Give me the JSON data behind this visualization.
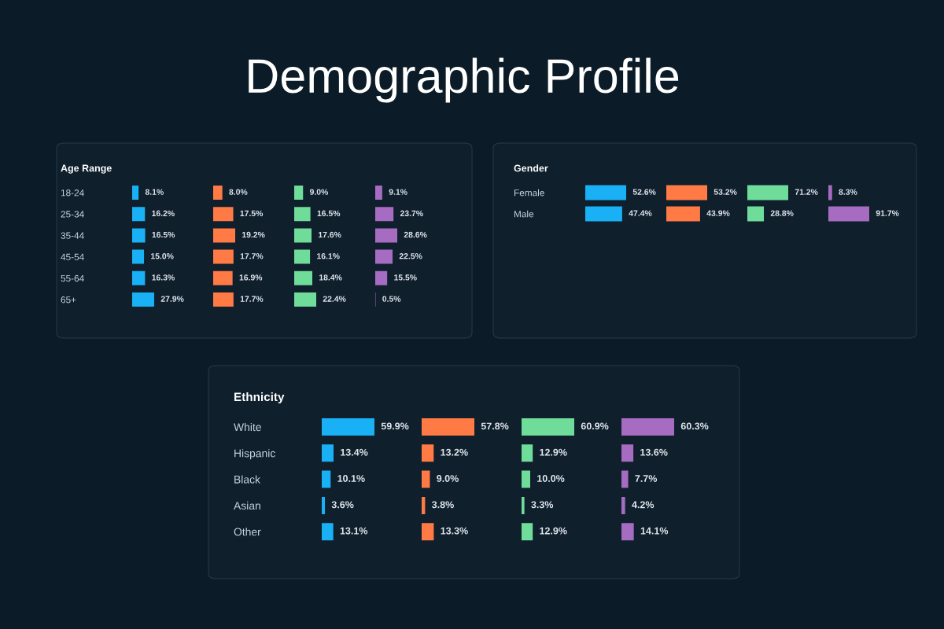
{
  "chart_data": [
    {
      "type": "bar",
      "orientation": "horizontal",
      "annotations": [
        "Demographic Profile"
      ],
      "title": "Age Range",
      "categories": [
        "18-24",
        "25-34",
        "35-44",
        "45-54",
        "55-64",
        "65+"
      ],
      "color": "#1ab0f5",
      "values": [
        8.1,
        16.2,
        16.5,
        15.0,
        16.3,
        27.9
      ],
      "value_labels": [
        "8.1%",
        "16.2%",
        "16.5%",
        "15.0%",
        "16.3%",
        "27.9%"
      ]
    },
    {
      "type": "bar",
      "orientation": "horizontal",
      "categories": [
        null,
        null,
        null,
        null,
        null,
        null
      ],
      "color": "#ff7a45",
      "values": [
        8.0,
        17.5,
        19.2,
        17.7,
        16.9,
        17.7
      ],
      "value_labels": [
        "8.0%",
        "17.5%",
        "19.2%",
        "17.7%",
        "16.9%",
        "17.7%"
      ]
    },
    {
      "type": "bar",
      "orientation": "horizontal",
      "categories": [
        null,
        null,
        null,
        null,
        null,
        null
      ],
      "color": "#6fdc9a",
      "values": [
        9.0,
        16.5,
        17.6,
        16.1,
        18.4,
        22.4
      ],
      "value_labels": [
        "9.0%",
        "16.5%",
        "17.6%",
        "16.1%",
        "18.4%",
        "22.4%"
      ]
    },
    {
      "type": "bar",
      "orientation": "horizontal",
      "categories": [
        null,
        null,
        null,
        null,
        null,
        null
      ],
      "color": "#a56cc1",
      "values": [
        9.1,
        23.7,
        28.6,
        22.5,
        15.5,
        0.5
      ],
      "value_labels": [
        "9.1%",
        "23.7%",
        "28.6%",
        "22.5%",
        "15.5%",
        "0.5%"
      ]
    },
    {
      "type": "bar",
      "orientation": "horizontal",
      "title": "Gender",
      "categories": [
        "Female",
        "Male"
      ],
      "color": "#1ab0f5",
      "values": [
        52.6,
        47.4
      ],
      "value_labels": [
        "52.6%",
        "47.4%"
      ]
    },
    {
      "type": "bar",
      "orientation": "horizontal",
      "categories": [
        null,
        null
      ],
      "color": "#ff7a45",
      "values": [
        53.2,
        43.9
      ],
      "value_labels": [
        "53.2%",
        "43.9%"
      ]
    },
    {
      "type": "bar",
      "orientation": "horizontal",
      "categories": [
        null,
        null
      ],
      "color": "#6fdc9a",
      "values": [
        71.2,
        28.8
      ],
      "value_labels": [
        "71.2%",
        "28.8%"
      ]
    },
    {
      "type": "bar",
      "orientation": "horizontal",
      "categories": [
        null,
        null
      ],
      "color": "#a56cc1",
      "values": [
        8.3,
        91.7
      ],
      "value_labels": [
        "8.3%",
        "91.7%"
      ]
    },
    {
      "type": "bar",
      "orientation": "horizontal",
      "title": "Ethnicity",
      "categories": [
        "White",
        "Hispanic",
        "Black",
        "Asian",
        "Other"
      ],
      "color": "#1ab0f5",
      "values": [
        59.9,
        13.4,
        10.1,
        3.6,
        13.1
      ],
      "value_labels": [
        "59.9%",
        "13.4%",
        "10.1%",
        "3.6%",
        "13.1%"
      ]
    },
    {
      "type": "bar",
      "orientation": "horizontal",
      "categories": [
        null,
        null,
        null,
        null,
        null
      ],
      "color": "#ff7a45",
      "values": [
        57.8,
        13.2,
        9.0,
        3.8,
        13.3
      ],
      "value_labels": [
        "57.8%",
        "13.2%",
        "9.0%",
        "3.8%",
        "13.3%"
      ]
    },
    {
      "type": "bar",
      "orientation": "horizontal",
      "categories": [
        null,
        null,
        null,
        null,
        null
      ],
      "color": "#6fdc9a",
      "values": [
        60.9,
        12.9,
        10.0,
        3.3,
        12.9
      ],
      "value_labels": [
        "60.9%",
        "12.9%",
        "10.0%",
        "3.3%",
        "12.9%"
      ]
    },
    {
      "type": "bar",
      "orientation": "horizontal",
      "categories": [
        null,
        null,
        null,
        null,
        null
      ],
      "color": "#a56cc1",
      "values": [
        60.3,
        13.6,
        7.7,
        4.2,
        14.1
      ],
      "value_labels": [
        "60.3%",
        "13.6%",
        "7.7%",
        "4.2%",
        "14.1%"
      ]
    }
  ]
}
